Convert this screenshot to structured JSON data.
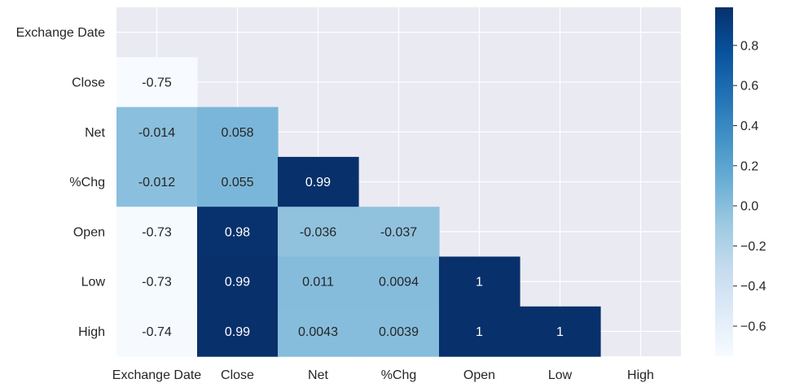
{
  "chart_data": {
    "type": "heatmap",
    "title": "",
    "xlabel": "",
    "ylabel": "",
    "row_labels": [
      "Exchange Date",
      "Close",
      "Net",
      "%Chg",
      "Open",
      "Low",
      "High"
    ],
    "col_labels": [
      "Exchange Date",
      "Close",
      "Net",
      "%Chg",
      "Open",
      "Low",
      "High"
    ],
    "mask": "upper-triangle-and-diagonal",
    "values": [
      [
        null,
        null,
        null,
        null,
        null,
        null,
        null
      ],
      [
        -0.75,
        null,
        null,
        null,
        null,
        null,
        null
      ],
      [
        -0.014,
        0.058,
        null,
        null,
        null,
        null,
        null
      ],
      [
        -0.012,
        0.055,
        0.99,
        null,
        null,
        null,
        null
      ],
      [
        -0.73,
        0.98,
        -0.036,
        -0.037,
        null,
        null,
        null
      ],
      [
        -0.73,
        0.99,
        0.011,
        0.0094,
        1,
        null,
        null
      ],
      [
        -0.74,
        0.99,
        0.0043,
        0.0039,
        1,
        1,
        null
      ]
    ],
    "annotations": [
      [
        null,
        null,
        null,
        null,
        null,
        null,
        null
      ],
      [
        "-0.75",
        null,
        null,
        null,
        null,
        null,
        null
      ],
      [
        "-0.014",
        "0.058",
        null,
        null,
        null,
        null,
        null
      ],
      [
        "-0.012",
        "0.055",
        "0.99",
        null,
        null,
        null,
        null
      ],
      [
        "-0.73",
        "0.98",
        "-0.036",
        "-0.037",
        null,
        null,
        null
      ],
      [
        "-0.73",
        "0.99",
        "0.011",
        "0.0094",
        "1",
        null,
        null
      ],
      [
        "-0.74",
        "0.99",
        "0.0043",
        "0.0039",
        "1",
        "1",
        null
      ]
    ],
    "colormap": "Blues",
    "vmin": -0.75,
    "vmax": 0.99,
    "colorbar_ticks": [
      0.8,
      0.6,
      0.4,
      0.2,
      0.0,
      -0.2,
      -0.4,
      -0.6
    ],
    "colorbar_tick_labels": [
      "0.8",
      "0.6",
      "0.4",
      "0.2",
      "0.0",
      "−0.2",
      "−0.4",
      "−0.6"
    ],
    "grid": true,
    "background_color": "#eaeaf2",
    "gridline_color": "#ffffff",
    "text_dark": "#262626",
    "text_light": "#ffffff"
  }
}
